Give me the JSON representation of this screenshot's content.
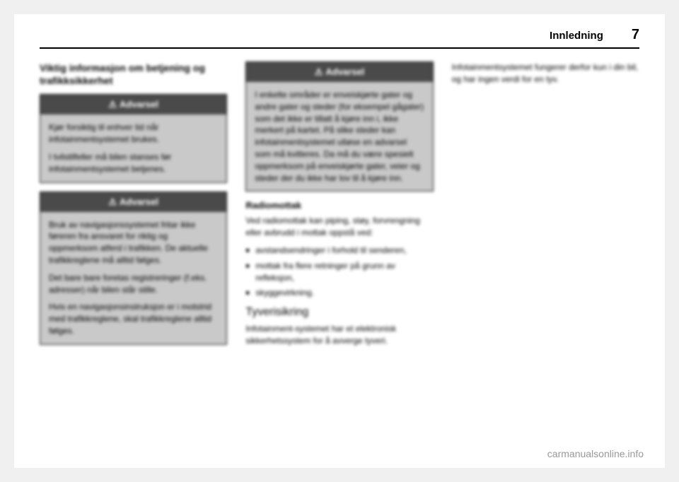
{
  "header": {
    "title": "Innledning",
    "page_number": "7"
  },
  "col1": {
    "heading": "Viktig informasjon om betjening og trafikksikkerhet",
    "warning1": {
      "label": "Advarsel",
      "p1": "Kjør forsiktig til enhver tid når infotainmentsystemet brukes.",
      "p2": "I tvilstilfeller må bilen stanses før infotainmentsystemet betjenes."
    },
    "warning2": {
      "label": "Advarsel",
      "p1": "Bruk av navigasjonssystemet fritar ikke føreren fra ansvaret for riktig og oppmerksom atferd i trafikken. De aktuelle trafikkreglene må alltid følges.",
      "p2": "Det bare bare foretas registreringer (f.eks. adresser) når bilen står stille.",
      "p3": "Hvis en navigasjonsinstruksjon er i motstrid med trafikkreglene, skal trafikkreglene alltid følges."
    }
  },
  "col2": {
    "warning1": {
      "label": "Advarsel",
      "p1": "I enkelte områder er enveiskjørte gater og andre gater og steder (for eksempel gågater) som det ikke er tillatt å kjøre inn i, ikke merkert på kartet. På slike steder kan infotainmentsystemet utløse en advarsel som må kvitteres. Da må du være spesielt oppmerksom på enveiskjørte gater, veier og steder der du ikke har lov til å kjøre inn."
    },
    "radio": {
      "heading": "Radiomottak",
      "intro": "Ved radiomottak kan piping, støy, forvrengning eller avbrudd i mottak oppstå ved:",
      "b1": "avstandsendringer i forhold til senderen,",
      "b2": "mottak fra flere retninger på grunn av refleksjon,",
      "b3": "skyggevirkning."
    },
    "theft": {
      "heading": "Tyverisikring",
      "body": "Infotainment-systemet har et elektronisk sikkerhetssystem for å avverge tyveri."
    }
  },
  "col3": {
    "body": "Infotainmentsystemet fungerer derfor kun i din bil, og har ingen verdi for en tyv."
  },
  "watermark": "carmanualsonline.info"
}
